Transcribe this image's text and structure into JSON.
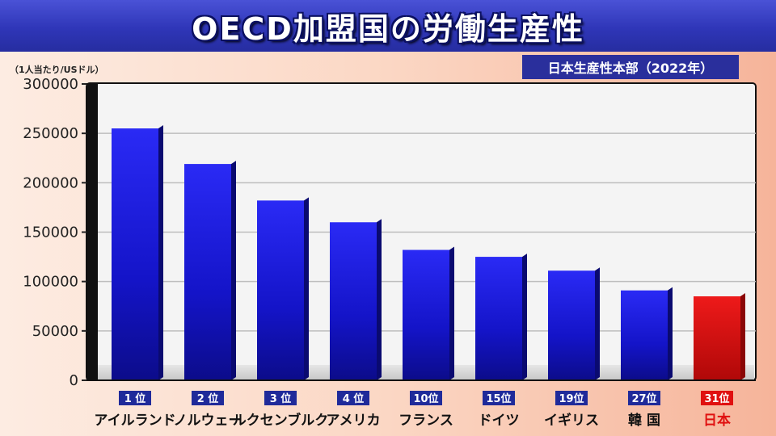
{
  "header": {
    "title": "OECD加盟国の労働生産性",
    "source": "日本生産性本部（2022年）",
    "unit": "（1人当たり/USドル）"
  },
  "colors": {
    "bar": "#1a1ae6",
    "bar_highlight": "#e01010",
    "rank_box": "#1f2a9a",
    "rank_box_highlight": "#e01010",
    "label_highlight": "#e01010"
  },
  "chart_data": {
    "type": "bar",
    "title": "OECD加盟国の労働生産性",
    "ylabel": "（1人当たり/USドル）",
    "ylim": [
      0,
      300000
    ],
    "yticks": [
      0,
      50000,
      100000,
      150000,
      200000,
      250000,
      300000
    ],
    "grid": true,
    "categories": [
      "アイルランド",
      "ノルウェー",
      "ルクセンブルク",
      "アメリカ",
      "フランス",
      "ドイツ",
      "イギリス",
      "韓 国",
      "日本"
    ],
    "ranks": [
      "1 位",
      "2 位",
      "3 位",
      "4 位",
      "10位",
      "15位",
      "19位",
      "27位",
      "31位"
    ],
    "values": [
      255000,
      219000,
      182000,
      160000,
      132000,
      125000,
      111000,
      91000,
      85000
    ],
    "highlight_index": 8
  }
}
